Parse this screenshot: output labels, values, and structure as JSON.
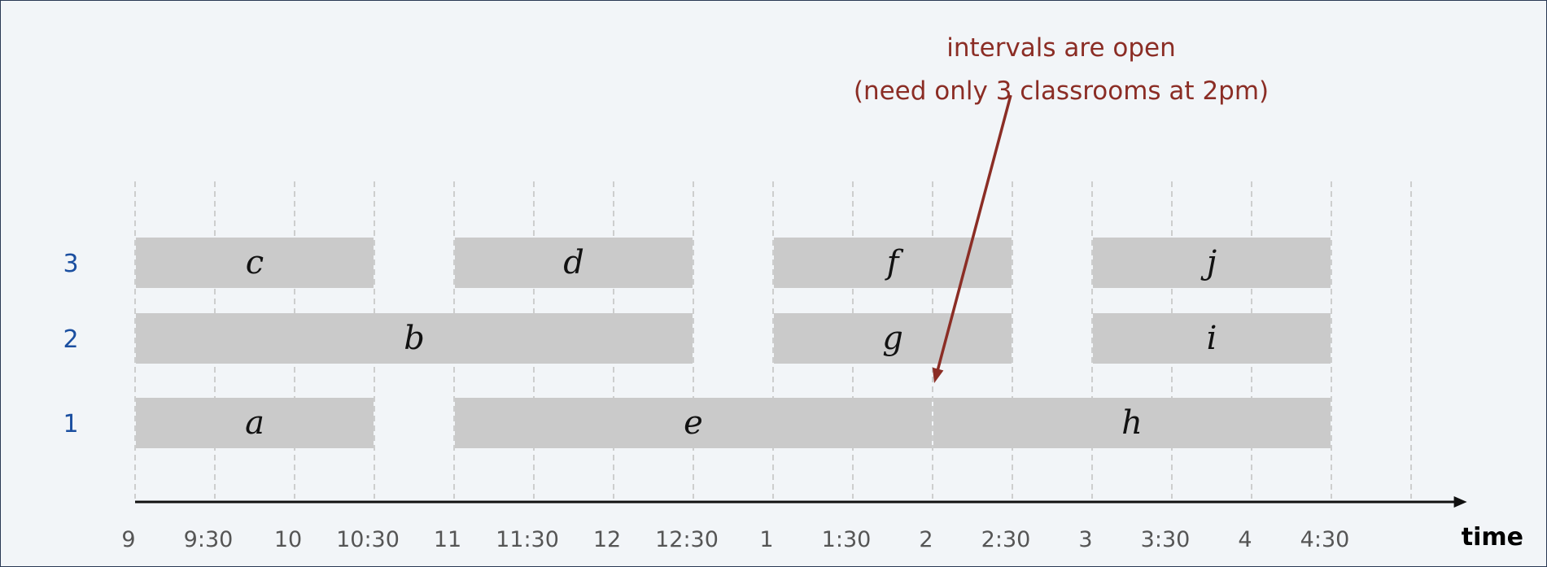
{
  "axis": {
    "name": "time",
    "ticks": [
      "9",
      "9:30",
      "10",
      "10:30",
      "11",
      "11:30",
      "12",
      "12:30",
      "1",
      "1:30",
      "2",
      "2:30",
      "3",
      "3:30",
      "4",
      "4:30"
    ],
    "start_hour": 9,
    "end_hour": 17,
    "arrow_end_hour": 17.35
  },
  "rows": [
    {
      "id": 1,
      "label": "1"
    },
    {
      "id": 2,
      "label": "2"
    },
    {
      "id": 3,
      "label": "3"
    }
  ],
  "intervals": [
    {
      "label": "c",
      "row": 3,
      "start": 9.0,
      "end": 10.5
    },
    {
      "label": "d",
      "row": 3,
      "start": 11.0,
      "end": 12.5
    },
    {
      "label": "f",
      "row": 3,
      "start": 13.0,
      "end": 14.5
    },
    {
      "label": "j",
      "row": 3,
      "start": 15.0,
      "end": 16.5
    },
    {
      "label": "b",
      "row": 2,
      "start": 9.0,
      "end": 12.5
    },
    {
      "label": "g",
      "row": 2,
      "start": 13.0,
      "end": 14.5
    },
    {
      "label": "i",
      "row": 2,
      "start": 15.0,
      "end": 16.5
    },
    {
      "label": "a",
      "row": 1,
      "start": 9.0,
      "end": 10.5
    },
    {
      "label": "e",
      "row": 1,
      "start": 11.0,
      "end": 14.0
    },
    {
      "label": "h",
      "row": 1,
      "start": 14.0,
      "end": 16.5
    }
  ],
  "annotation": {
    "line1": "intervals are open",
    "line2": "(need only 3 classrooms at 2pm)",
    "points_to_hour": 14.0
  },
  "colors": {
    "interval_fill": "#cacaca",
    "grid": "#c4c4c4",
    "axis": "#111111",
    "annotation": "#8b2d25",
    "row_label": "#1b4fa0"
  }
}
